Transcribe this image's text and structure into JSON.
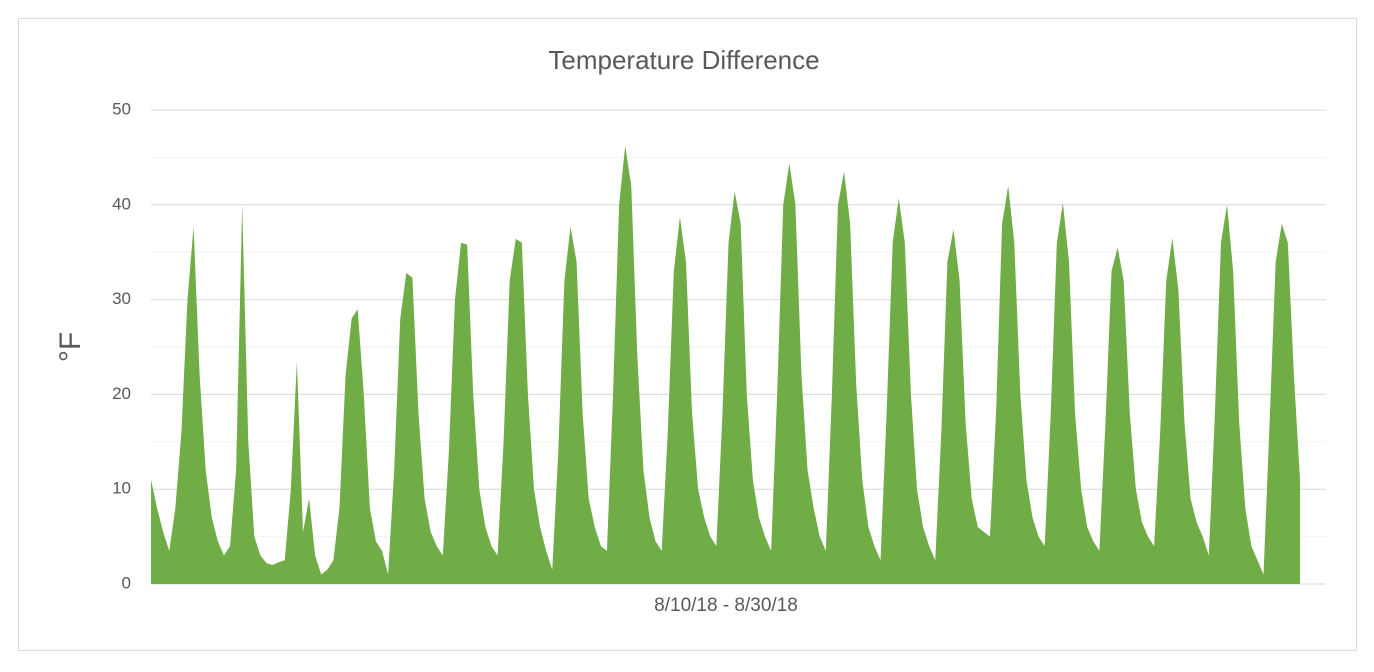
{
  "chart_data": {
    "type": "area",
    "title": "Temperature Difference",
    "x_label": "8/10/18 - 8/30/18",
    "y_label": "°F",
    "color": "#70ad47",
    "ylim": [
      0,
      50
    ],
    "yticks": [
      0,
      10,
      20,
      30,
      40,
      50
    ],
    "minor_yticks": [
      5,
      15,
      25,
      35,
      45
    ],
    "grid": true,
    "values": [
      11,
      8,
      5.5,
      3.5,
      8,
      16,
      30,
      37.7,
      22,
      12,
      7,
      4.5,
      3,
      4,
      12,
      40,
      15,
      5,
      3,
      2.2,
      2,
      2.3,
      2.5,
      10,
      23.5,
      5.5,
      9,
      3,
      1,
      1.5,
      2.5,
      8,
      22,
      28,
      29,
      20,
      8,
      4.5,
      3.5,
      1,
      12,
      28,
      32.8,
      32.3,
      18,
      9,
      5.5,
      4,
      3,
      14,
      30,
      36,
      35.8,
      20,
      10,
      6,
      4,
      3,
      15,
      32,
      36.4,
      36,
      20,
      10,
      6,
      3.5,
      1.5,
      14,
      32,
      37.7,
      34,
      18,
      9,
      6,
      4,
      3.5,
      20,
      40,
      46.2,
      42,
      24,
      12,
      7,
      4.5,
      3.5,
      16,
      33,
      38.7,
      34,
      18,
      10,
      7,
      5,
      4,
      18,
      36,
      41.4,
      38,
      20,
      11,
      7,
      5,
      3.5,
      20,
      40,
      44.4,
      40,
      22,
      12,
      8,
      5,
      3.5,
      20,
      40,
      43.5,
      38,
      21,
      11,
      6,
      4,
      2.5,
      18,
      36,
      40.7,
      36,
      20,
      10,
      6,
      4,
      2.5,
      16,
      34,
      37.4,
      32,
      17,
      9,
      6,
      5.5,
      5,
      18,
      38,
      42,
      36,
      20,
      11,
      7,
      5,
      4,
      18,
      36,
      40.2,
      34,
      18,
      10,
      6,
      4.5,
      3.5,
      17,
      33,
      35.5,
      32,
      18,
      10,
      6.5,
      5,
      4,
      16,
      32,
      36.5,
      31,
      17,
      9,
      6.5,
      5,
      3,
      18,
      36,
      40,
      33,
      17,
      8,
      4,
      2.5,
      1,
      17,
      34,
      38,
      36,
      22,
      11
    ]
  }
}
